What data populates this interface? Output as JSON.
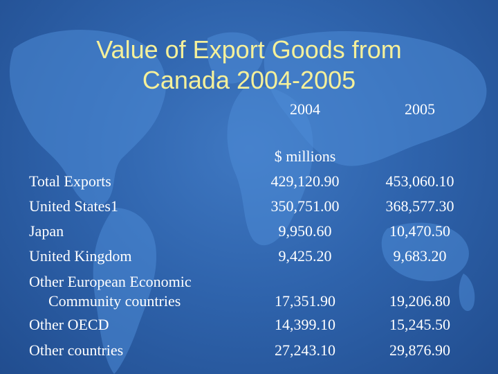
{
  "slide": {
    "title_line1": "Value of Export Goods from",
    "title_line2": "Canada 2004-2005"
  },
  "table": {
    "year_2004": "2004",
    "year_2005": "2005",
    "units": "$ millions",
    "rows": [
      {
        "label": "Total Exports",
        "v2004": "429,120.90",
        "v2005": "453,060.10"
      },
      {
        "label": "United States1",
        "v2004": "350,751.00",
        "v2005": "368,577.30"
      },
      {
        "label": "Japan",
        "v2004": "9,950.60",
        "v2005": "10,470.50"
      },
      {
        "label": "United Kingdom",
        "v2004": "9,425.20",
        "v2005": "9,683.20"
      },
      {
        "label_line1": "Other European Economic",
        "label_line2": "Community countries",
        "v2004": "17,351.90",
        "v2005": "19,206.80"
      },
      {
        "label": "Other OECD",
        "v2004": "14,399.10",
        "v2005": "15,245.50"
      },
      {
        "label": "Other countries",
        "v2004": "27,243.10",
        "v2005": "29,876.90"
      }
    ]
  },
  "colors": {
    "background": "#2f64ad",
    "title": "#f5f09a",
    "text": "#ffffff",
    "map": "#4d8bd6"
  },
  "icons": [
    "world-map-background"
  ]
}
